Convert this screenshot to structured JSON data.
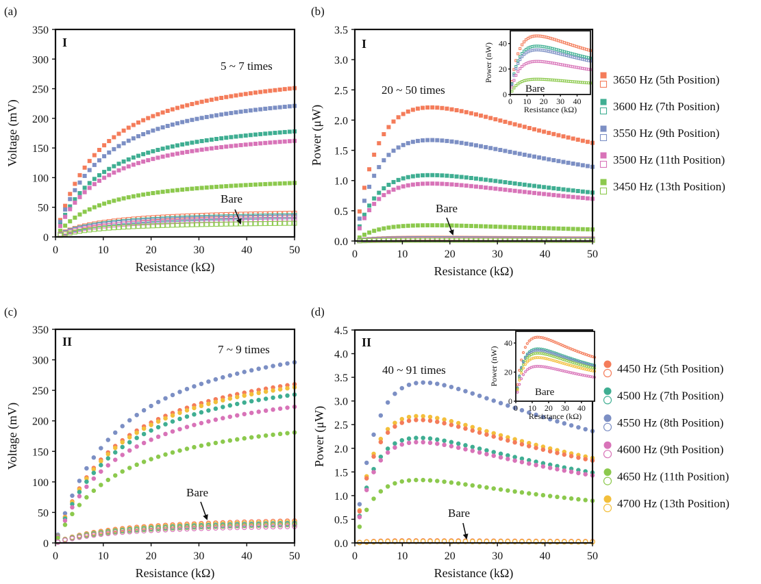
{
  "colors": {
    "orange": "#f47c5a",
    "teal": "#3fae92",
    "blue": "#7c8fc4",
    "pink": "#d873b8",
    "green": "#8cc94d",
    "yellow": "#f3bf3b",
    "axis": "#111111"
  },
  "legend_top": [
    {
      "label": "3650 Hz (5th Position)",
      "color": "orange"
    },
    {
      "label": "3600 Hz (7th Position)",
      "color": "teal"
    },
    {
      "label": "3550 Hz (9th Position)",
      "color": "blue"
    },
    {
      "label": "3500 Hz (11th Position)",
      "color": "pink"
    },
    {
      "label": "3450 Hz (13th Position)",
      "color": "green"
    }
  ],
  "legend_bottom": [
    {
      "label": "4450 Hz (5th Position)",
      "color": "orange"
    },
    {
      "label": "4500 Hz (7th Position)",
      "color": "teal"
    },
    {
      "label": "4550 Hz (8th Position)",
      "color": "blue"
    },
    {
      "label": "4600 Hz (9th Position)",
      "color": "pink"
    },
    {
      "label": "4650 Hz (11th Position)",
      "color": "green"
    },
    {
      "label": "4700 Hz (13th Position)",
      "color": "yellow"
    }
  ],
  "chart_data": [
    {
      "id": "a",
      "type": "scatter",
      "panel_label": "(a)",
      "roman": "I",
      "annotation": "5 ~ 7 times",
      "bare_label": "Bare",
      "marker": "square",
      "xlabel": "Resistance (kΩ)",
      "ylabel": "Voltage (mV)",
      "xlim": [
        0,
        50
      ],
      "ylim": [
        0,
        350
      ],
      "xticks": [
        0,
        10,
        20,
        30,
        40,
        50
      ],
      "yticks": [
        0,
        50,
        100,
        150,
        200,
        250,
        300,
        350
      ],
      "model": "voltage",
      "x_range": [
        1,
        50
      ],
      "n_points": 49,
      "series": [
        {
          "name": "3650 Hz (5th Position)",
          "color": "orange",
          "filled": true,
          "vmax": 251,
          "r0": 9.5
        },
        {
          "name": "3550 Hz (9th Position)",
          "color": "blue",
          "filled": true,
          "vmax": 221,
          "r0": 9.5
        },
        {
          "name": "3600 Hz (7th Position)",
          "color": "teal",
          "filled": true,
          "vmax": 178,
          "r0": 9.5
        },
        {
          "name": "3500 Hz (11th Position)",
          "color": "pink",
          "filled": true,
          "vmax": 162,
          "r0": 9.5
        },
        {
          "name": "3450 Hz (13th Position)",
          "color": "green",
          "filled": true,
          "vmax": 91,
          "r0": 9.5
        },
        {
          "name": "3650 Hz (5th Position) bare",
          "color": "orange",
          "filled": false,
          "vmax": 40,
          "r0": 9.5
        },
        {
          "name": "3600 Hz (7th Position) bare",
          "color": "teal",
          "filled": false,
          "vmax": 36,
          "r0": 9.5
        },
        {
          "name": "3550 Hz (9th Position) bare",
          "color": "blue",
          "filled": false,
          "vmax": 34,
          "r0": 9.5
        },
        {
          "name": "3500 Hz (11th Position) bare",
          "color": "pink",
          "filled": false,
          "vmax": 30,
          "r0": 9.5
        },
        {
          "name": "3450 Hz (13th Position) bare",
          "color": "green",
          "filled": false,
          "vmax": 23,
          "r0": 9.5
        }
      ]
    },
    {
      "id": "b",
      "type": "scatter",
      "panel_label": "(b)",
      "roman": "I",
      "annotation": "20 ~ 50 times",
      "bare_label": "Bare",
      "marker": "square",
      "xlabel": "Resistance (kΩ)",
      "ylabel": "Power (μW)",
      "xlim": [
        0,
        50
      ],
      "ylim": [
        0,
        3.5
      ],
      "xticks": [
        0,
        10,
        20,
        30,
        40,
        50
      ],
      "yticks": [
        0,
        0.5,
        1.0,
        1.5,
        2.0,
        2.5,
        3.0,
        3.5
      ],
      "model": "power",
      "x_range": [
        1,
        50
      ],
      "n_points": 49,
      "series": [
        {
          "name": "3650 Hz (5th Position)",
          "color": "orange",
          "filled": true,
          "pmax": 2.21,
          "r0": 16
        },
        {
          "name": "3550 Hz (9th Position)",
          "color": "blue",
          "filled": true,
          "pmax": 1.67,
          "r0": 16
        },
        {
          "name": "3600 Hz (7th Position)",
          "color": "teal",
          "filled": true,
          "pmax": 1.09,
          "r0": 16
        },
        {
          "name": "3500 Hz (11th Position)",
          "color": "pink",
          "filled": true,
          "pmax": 0.95,
          "r0": 16
        },
        {
          "name": "3450 Hz (13th Position)",
          "color": "green",
          "filled": true,
          "pmax": 0.26,
          "r0": 16
        },
        {
          "name": "3650 Hz (5th Position) bare",
          "color": "orange",
          "filled": false,
          "pmax": 0.046,
          "r0": 16
        },
        {
          "name": "3600 Hz (7th Position) bare",
          "color": "teal",
          "filled": false,
          "pmax": 0.038,
          "r0": 16
        },
        {
          "name": "3550 Hz (9th Position) bare",
          "color": "blue",
          "filled": false,
          "pmax": 0.035,
          "r0": 16
        },
        {
          "name": "3500 Hz (11th Position) bare",
          "color": "pink",
          "filled": false,
          "pmax": 0.026,
          "r0": 16
        },
        {
          "name": "3450 Hz (13th Position) bare",
          "color": "green",
          "filled": false,
          "pmax": 0.012,
          "r0": 16
        }
      ],
      "inset": {
        "type": "scatter",
        "bare_label": "Bare",
        "xlabel": "Resistance (kΩ)",
        "ylabel": "Power (nW)",
        "xlim": [
          0,
          48
        ],
        "ylim": [
          0,
          50
        ],
        "xticks": [
          0,
          10,
          20,
          30,
          40
        ],
        "yticks": [
          0,
          20,
          40
        ],
        "marker": "square",
        "series": [
          {
            "name": "3650 Hz bare",
            "color": "orange",
            "pmax": 46,
            "r0": 16
          },
          {
            "name": "3600 Hz bare",
            "color": "teal",
            "pmax": 38,
            "r0": 16
          },
          {
            "name": "3550 Hz bare",
            "color": "blue",
            "pmax": 35,
            "r0": 16
          },
          {
            "name": "3500 Hz bare",
            "color": "pink",
            "pmax": 26,
            "r0": 16
          },
          {
            "name": "3450 Hz bare",
            "color": "green",
            "pmax": 12,
            "r0": 16
          }
        ]
      }
    },
    {
      "id": "c",
      "type": "scatter",
      "panel_label": "(c)",
      "roman": "II",
      "annotation": "7 ~ 9 times",
      "bare_label": "Bare",
      "marker": "circle",
      "xlabel": "Resistance (kΩ)",
      "ylabel": "Voltage (mV)",
      "xlim": [
        0,
        50
      ],
      "ylim": [
        0,
        350
      ],
      "xticks": [
        0,
        10,
        20,
        30,
        40,
        50
      ],
      "yticks": [
        0,
        50,
        100,
        150,
        200,
        250,
        300,
        350
      ],
      "model": "voltage",
      "x_range": [
        0.5,
        50
      ],
      "n_points": 34,
      "series": [
        {
          "name": "4550 Hz (8th Position)",
          "color": "blue",
          "filled": true,
          "vmax": 296,
          "r0": 13.5
        },
        {
          "name": "4450 Hz (5th Position)",
          "color": "orange",
          "filled": true,
          "vmax": 260,
          "r0": 13.5
        },
        {
          "name": "4700 Hz (13th Position)",
          "color": "yellow",
          "filled": true,
          "vmax": 255,
          "r0": 13.5
        },
        {
          "name": "4500 Hz (7th Position)",
          "color": "teal",
          "filled": true,
          "vmax": 243,
          "r0": 13.5
        },
        {
          "name": "4600 Hz (9th Position)",
          "color": "pink",
          "filled": true,
          "vmax": 223,
          "r0": 13.5
        },
        {
          "name": "4650 Hz (11th Position)",
          "color": "green",
          "filled": true,
          "vmax": 181,
          "r0": 13.5
        },
        {
          "name": "4450 Hz (5th Position) bare",
          "color": "orange",
          "filled": false,
          "vmax": 36,
          "r0": 13.5
        },
        {
          "name": "4700 Hz (13th Position) bare",
          "color": "yellow",
          "filled": false,
          "vmax": 34,
          "r0": 13.5
        },
        {
          "name": "4500 Hz (7th Position) bare",
          "color": "teal",
          "filled": false,
          "vmax": 32,
          "r0": 13.5
        },
        {
          "name": "4550 Hz (8th Position) bare",
          "color": "blue",
          "filled": false,
          "vmax": 31,
          "r0": 13.5
        },
        {
          "name": "4650 Hz (11th Position) bare",
          "color": "green",
          "filled": false,
          "vmax": 30,
          "r0": 13.5
        },
        {
          "name": "4600 Hz (9th Position) bare",
          "color": "pink",
          "filled": false,
          "vmax": 27,
          "r0": 13.5
        }
      ]
    },
    {
      "id": "d",
      "type": "scatter",
      "panel_label": "(d)",
      "roman": "II",
      "annotation": "40 ~ 91 times",
      "bare_label": "Bare",
      "marker": "circle",
      "xlabel": "Resistance (kΩ)",
      "ylabel": "Power (μW)",
      "xlim": [
        0,
        50
      ],
      "ylim": [
        0,
        4.5
      ],
      "xticks": [
        0,
        10,
        20,
        30,
        40,
        50
      ],
      "yticks": [
        0,
        0.5,
        1.0,
        1.5,
        2.0,
        2.5,
        3.0,
        3.5,
        4.0,
        4.5
      ],
      "model": "power",
      "x_range": [
        1,
        50
      ],
      "n_points": 34,
      "series": [
        {
          "name": "4550 Hz (8th Position)",
          "color": "blue",
          "filled": true,
          "pmax": 3.39,
          "r0": 14.5
        },
        {
          "name": "4700 Hz (13th Position)",
          "color": "yellow",
          "filled": true,
          "pmax": 2.68,
          "r0": 13.5
        },
        {
          "name": "4450 Hz (5th Position)",
          "color": "orange",
          "filled": true,
          "pmax": 2.6,
          "r0": 13.5
        },
        {
          "name": "4500 Hz (7th Position)",
          "color": "teal",
          "filled": true,
          "pmax": 2.22,
          "r0": 13.5
        },
        {
          "name": "4600 Hz (9th Position)",
          "color": "pink",
          "filled": true,
          "pmax": 2.13,
          "r0": 13.5
        },
        {
          "name": "4650 Hz (11th Position)",
          "color": "green",
          "filled": true,
          "pmax": 1.33,
          "r0": 13.5
        },
        {
          "name": "4450 Hz (5th Position) bare",
          "color": "orange",
          "filled": false,
          "pmax": 0.044,
          "r0": 13.5
        },
        {
          "name": "4700 Hz (13th Position) bare",
          "color": "yellow",
          "filled": false,
          "pmax": 0.03,
          "r0": 13.5
        }
      ],
      "inset": {
        "type": "scatter",
        "bare_label": "Bare",
        "xlabel": "Resistance (kΩ)",
        "ylabel": "Power (nW)",
        "xlim": [
          0,
          48
        ],
        "ylim": [
          0,
          48
        ],
        "xticks": [
          0,
          10,
          20,
          30,
          40
        ],
        "yticks": [
          0,
          20,
          40
        ],
        "marker": "circle",
        "series": [
          {
            "name": "4450 Hz bare",
            "color": "orange",
            "pmax": 44,
            "r0": 13.5
          },
          {
            "name": "4500 Hz bare",
            "color": "teal",
            "pmax": 36,
            "r0": 13.5
          },
          {
            "name": "4550 Hz bare",
            "color": "blue",
            "pmax": 35,
            "r0": 13.5
          },
          {
            "name": "4650 Hz bare",
            "color": "green",
            "pmax": 33,
            "r0": 13.5
          },
          {
            "name": "4700 Hz bare",
            "color": "yellow",
            "pmax": 30,
            "r0": 13.5
          },
          {
            "name": "4600 Hz bare",
            "color": "pink",
            "pmax": 24,
            "r0": 13.5
          }
        ]
      }
    }
  ]
}
